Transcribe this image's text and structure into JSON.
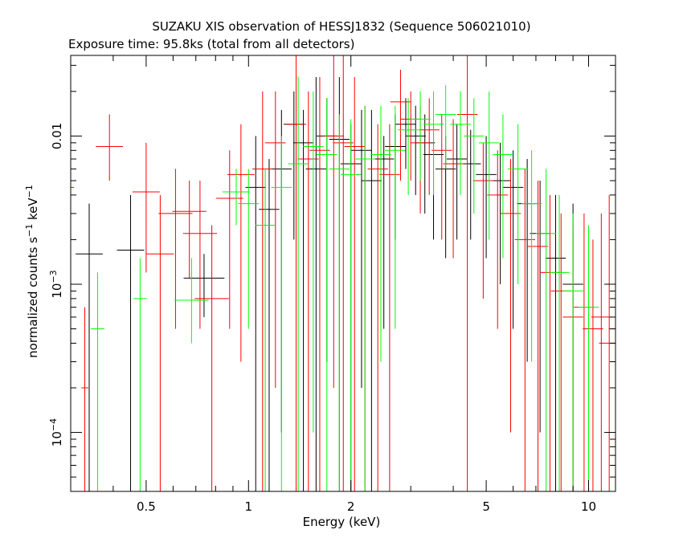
{
  "chart_data": {
    "type": "scatter",
    "title": "SUZAKU XIS observation of HESSJ1832 (Sequence 506021010)",
    "subtitle": "Exposure time: 95.8ks (total from all detectors)",
    "xlabel": "Energy (keV)",
    "ylabel": "normalized counts s",
    "ylabel_sup1": "−1",
    "ylabel_mid": " keV",
    "ylabel_sup2": "−1",
    "x_scale": "log",
    "y_scale": "log",
    "xlim": [
      0.3,
      12
    ],
    "ylim": [
      4e-05,
      0.035
    ],
    "x_ticks": [
      {
        "value": 0.5,
        "label": "0.5"
      },
      {
        "value": 1,
        "label": "1"
      },
      {
        "value": 2,
        "label": "2"
      },
      {
        "value": 5,
        "label": "5"
      },
      {
        "value": 10,
        "label": "10"
      }
    ],
    "y_ticks": [
      {
        "value": 0.01,
        "label": "0.01",
        "base": "",
        "exp": ""
      },
      {
        "value": 0.001,
        "label": "",
        "base": "10",
        "exp": "−3"
      },
      {
        "value": 0.0001,
        "label": "",
        "base": "10",
        "exp": "−4"
      }
    ],
    "grid": false,
    "legend": "none",
    "series": [
      {
        "color": "#000000",
        "points": [
          [
            0.34,
            0.0016,
            0.04,
            0.0035,
            4e-05
          ],
          [
            0.45,
            0.0017,
            0.04,
            0.004,
            4e-05
          ],
          [
            0.74,
            0.0011,
            0.06,
            0.0016,
            0.0006
          ],
          [
            1.05,
            0.0045,
            0.03,
            0.01,
            4e-05
          ],
          [
            1.15,
            0.0032,
            0.03,
            0.007,
            4e-05
          ],
          [
            1.25,
            0.006,
            0.03,
            0.015,
            0.0001
          ],
          [
            1.36,
            0.012,
            0.03,
            0.02,
            0.002
          ],
          [
            1.45,
            0.009,
            0.03,
            0.015,
            4e-05
          ],
          [
            1.58,
            0.006,
            0.03,
            0.025,
            4e-05
          ],
          [
            1.7,
            0.01,
            0.03,
            0.018,
            0.0003
          ],
          [
            1.85,
            0.0095,
            0.03,
            0.025,
            4e-05
          ],
          [
            2.0,
            0.0065,
            0.03,
            0.012,
            4e-05
          ],
          [
            2.15,
            0.008,
            0.03,
            0.015,
            0.0002
          ],
          [
            2.3,
            0.005,
            0.03,
            0.015,
            4e-05
          ],
          [
            2.5,
            0.007,
            0.03,
            0.01,
            0.0005
          ],
          [
            2.7,
            0.0085,
            0.03,
            0.014,
            0.002
          ],
          [
            2.9,
            0.012,
            0.03,
            0.018,
            0.006
          ],
          [
            3.1,
            0.01,
            0.03,
            0.016,
            0.004
          ],
          [
            3.3,
            0.009,
            0.03,
            0.014,
            0.003
          ],
          [
            3.5,
            0.0075,
            0.03,
            0.012,
            0.002
          ],
          [
            3.8,
            0.006,
            0.03,
            0.01,
            0.0015
          ],
          [
            4.1,
            0.007,
            0.03,
            0.012,
            0.002
          ],
          [
            4.5,
            0.0065,
            0.03,
            0.011,
            0.002
          ],
          [
            5.0,
            0.0055,
            0.03,
            0.01,
            0.0015
          ],
          [
            5.5,
            0.005,
            0.03,
            0.009,
            0.001
          ],
          [
            6.0,
            0.0045,
            0.03,
            0.008,
            0.0005
          ],
          [
            6.6,
            0.0035,
            0.03,
            0.007,
            0.0003
          ],
          [
            7.2,
            0.0022,
            0.03,
            0.005,
            0.0001
          ],
          [
            8.0,
            0.0015,
            0.03,
            0.004,
            4e-05
          ],
          [
            9.0,
            0.001,
            0.03,
            0.0035,
            4e-05
          ]
        ]
      },
      {
        "color": "#ff0000",
        "points": [
          [
            0.3,
            0.0045,
            0.01,
            0.022,
            4e-05
          ],
          [
            0.33,
            0.0002,
            0.01,
            0.0007,
            4e-05
          ],
          [
            0.39,
            0.0085,
            0.04,
            0.014,
            0.005
          ],
          [
            0.5,
            0.0042,
            0.04,
            0.009,
            0.0012
          ],
          [
            0.55,
            0.0016,
            0.04,
            0.004,
            4e-05
          ],
          [
            0.61,
            0.003,
            0.05,
            0.006,
            0.0005
          ],
          [
            0.67,
            0.0031,
            0.05,
            0.005,
            0.0011
          ],
          [
            0.72,
            0.0022,
            0.05,
            0.005,
            0.0005
          ],
          [
            0.78,
            0.0008,
            0.05,
            0.0025,
            4e-05
          ],
          [
            0.88,
            0.0038,
            0.04,
            0.008,
            0.0005
          ],
          [
            0.95,
            0.0055,
            0.04,
            0.012,
            0.0003
          ],
          [
            1.1,
            0.006,
            0.03,
            0.02,
            4e-05
          ],
          [
            1.2,
            0.009,
            0.03,
            0.02,
            0.0002
          ],
          [
            1.38,
            0.012,
            0.03,
            0.035,
            4e-05
          ],
          [
            1.5,
            0.007,
            0.03,
            0.02,
            4e-05
          ],
          [
            1.62,
            0.008,
            0.03,
            0.025,
            4e-05
          ],
          [
            1.78,
            0.01,
            0.03,
            0.035,
            0.0002
          ],
          [
            1.9,
            0.009,
            0.03,
            0.035,
            4e-05
          ],
          [
            2.05,
            0.0085,
            0.03,
            0.025,
            4e-05
          ],
          [
            2.2,
            0.007,
            0.03,
            0.016,
            4e-05
          ],
          [
            2.4,
            0.006,
            0.03,
            0.012,
            4e-05
          ],
          [
            2.6,
            0.0055,
            0.03,
            0.012,
            4e-05
          ],
          [
            2.8,
            0.017,
            0.03,
            0.028,
            0.005
          ],
          [
            3.0,
            0.013,
            0.03,
            0.02,
            0.005
          ],
          [
            3.2,
            0.009,
            0.03,
            0.016,
            0.003
          ],
          [
            3.4,
            0.011,
            0.03,
            0.018,
            0.004
          ],
          [
            3.7,
            0.008,
            0.03,
            0.014,
            0.002
          ],
          [
            4.0,
            0.0065,
            0.03,
            0.013,
            0.0015
          ],
          [
            4.4,
            0.014,
            0.03,
            0.035,
            4e-05
          ],
          [
            4.9,
            0.005,
            0.03,
            0.009,
            0.0008
          ],
          [
            5.4,
            0.004,
            0.03,
            0.008,
            0.0005
          ],
          [
            5.9,
            0.003,
            0.03,
            0.007,
            0.0001
          ],
          [
            6.5,
            0.002,
            0.03,
            0.006,
            4e-05
          ],
          [
            7.1,
            0.0018,
            0.03,
            0.005,
            4e-05
          ],
          [
            7.7,
            0.0012,
            0.03,
            0.004,
            4e-05
          ],
          [
            8.3,
            0.0009,
            0.03,
            0.003,
            4e-05
          ],
          [
            9.0,
            0.0006,
            0.03,
            0.0025,
            4e-05
          ],
          [
            9.7,
            0.0007,
            0.03,
            0.003,
            4e-05
          ],
          [
            10.3,
            0.0005,
            0.03,
            0.002,
            4e-05
          ],
          [
            10.9,
            0.0006,
            0.03,
            0.003,
            4e-05
          ],
          [
            11.5,
            0.0004,
            0.03,
            0.004,
            4e-05
          ],
          [
            12.0,
            0.0005,
            0.02,
            0.012,
            4e-05
          ]
        ]
      },
      {
        "color": "#00ff00",
        "points": [
          [
            0.36,
            0.0005,
            0.02,
            0.0012,
            4e-05
          ],
          [
            0.48,
            0.0008,
            0.02,
            0.0015,
            4e-05
          ],
          [
            0.68,
            0.00078,
            0.05,
            0.0015,
            0.0004
          ],
          [
            0.92,
            0.0042,
            0.04,
            0.006,
            0.0025
          ],
          [
            1.0,
            0.0035,
            0.03,
            0.006,
            0.0005
          ],
          [
            1.12,
            0.0025,
            0.03,
            0.006,
            4e-05
          ],
          [
            1.25,
            0.0045,
            0.03,
            0.01,
            4e-05
          ],
          [
            1.4,
            0.0065,
            0.03,
            0.025,
            4e-05
          ],
          [
            1.55,
            0.0085,
            0.03,
            0.02,
            0.0001
          ],
          [
            1.7,
            0.0075,
            0.03,
            0.018,
            4e-05
          ],
          [
            1.85,
            0.006,
            0.03,
            0.014,
            4e-05
          ],
          [
            2.0,
            0.0055,
            0.03,
            0.013,
            4e-05
          ],
          [
            2.2,
            0.007,
            0.03,
            0.016,
            4e-05
          ],
          [
            2.45,
            0.0075,
            0.03,
            0.016,
            0.0003
          ],
          [
            2.7,
            0.008,
            0.03,
            0.016,
            0.0005
          ],
          [
            2.95,
            0.011,
            0.03,
            0.018,
            0.004
          ],
          [
            3.2,
            0.013,
            0.03,
            0.02,
            0.005
          ],
          [
            3.5,
            0.012,
            0.03,
            0.02,
            0.004
          ],
          [
            3.8,
            0.014,
            0.03,
            0.022,
            0.006
          ],
          [
            4.2,
            0.012,
            0.03,
            0.02,
            0.004
          ],
          [
            4.6,
            0.01,
            0.03,
            0.018,
            0.003
          ],
          [
            5.1,
            0.009,
            0.03,
            0.02,
            0.002
          ],
          [
            5.6,
            0.0075,
            0.03,
            0.014,
            0.0015
          ],
          [
            6.2,
            0.006,
            0.03,
            0.012,
            0.001
          ],
          [
            6.8,
            0.0035,
            0.03,
            0.008,
            0.0003
          ],
          [
            7.5,
            0.0022,
            0.03,
            0.006,
            4e-05
          ],
          [
            8.2,
            0.0012,
            0.03,
            0.004,
            4e-05
          ],
          [
            9.0,
            0.0009,
            0.03,
            0.003,
            4e-05
          ],
          [
            10.0,
            0.0007,
            0.03,
            0.0025,
            4e-05
          ]
        ]
      }
    ]
  }
}
